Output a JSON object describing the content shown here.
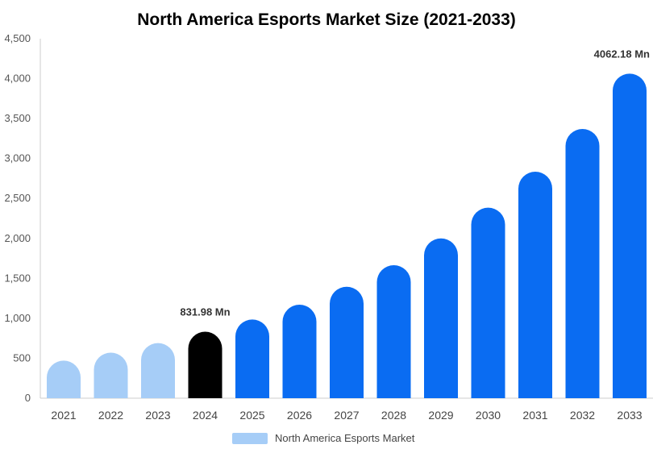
{
  "chart_data": {
    "type": "bar",
    "title": "North America Esports Market Size (2021-2033)",
    "categories": [
      "2021",
      "2022",
      "2023",
      "2024",
      "2025",
      "2026",
      "2027",
      "2028",
      "2029",
      "2030",
      "2031",
      "2032",
      "2033"
    ],
    "series": [
      {
        "name": "North America Esports Market",
        "values": [
          470,
          570,
          690,
          831.98,
          985,
          1170,
          1395,
          1665,
          2000,
          2385,
          2835,
          3370,
          4062.18
        ]
      }
    ],
    "ylim": [
      0,
      4500
    ],
    "yticks": [
      "0",
      "500",
      "1,000",
      "1,500",
      "2,000",
      "2,500",
      "3,000",
      "3,500",
      "4,000",
      "4,500"
    ],
    "data_labels": [
      {
        "category": "2024",
        "text": "831.98 Mn"
      },
      {
        "category": "2033",
        "text": "4062.18 Mn"
      }
    ],
    "colors": {
      "historic": "#a6cdf7",
      "current": "#000000",
      "forecast": "#0a6cf2",
      "axis": "#cccccc"
    },
    "legend_position": "bottom-center",
    "grid": false
  }
}
